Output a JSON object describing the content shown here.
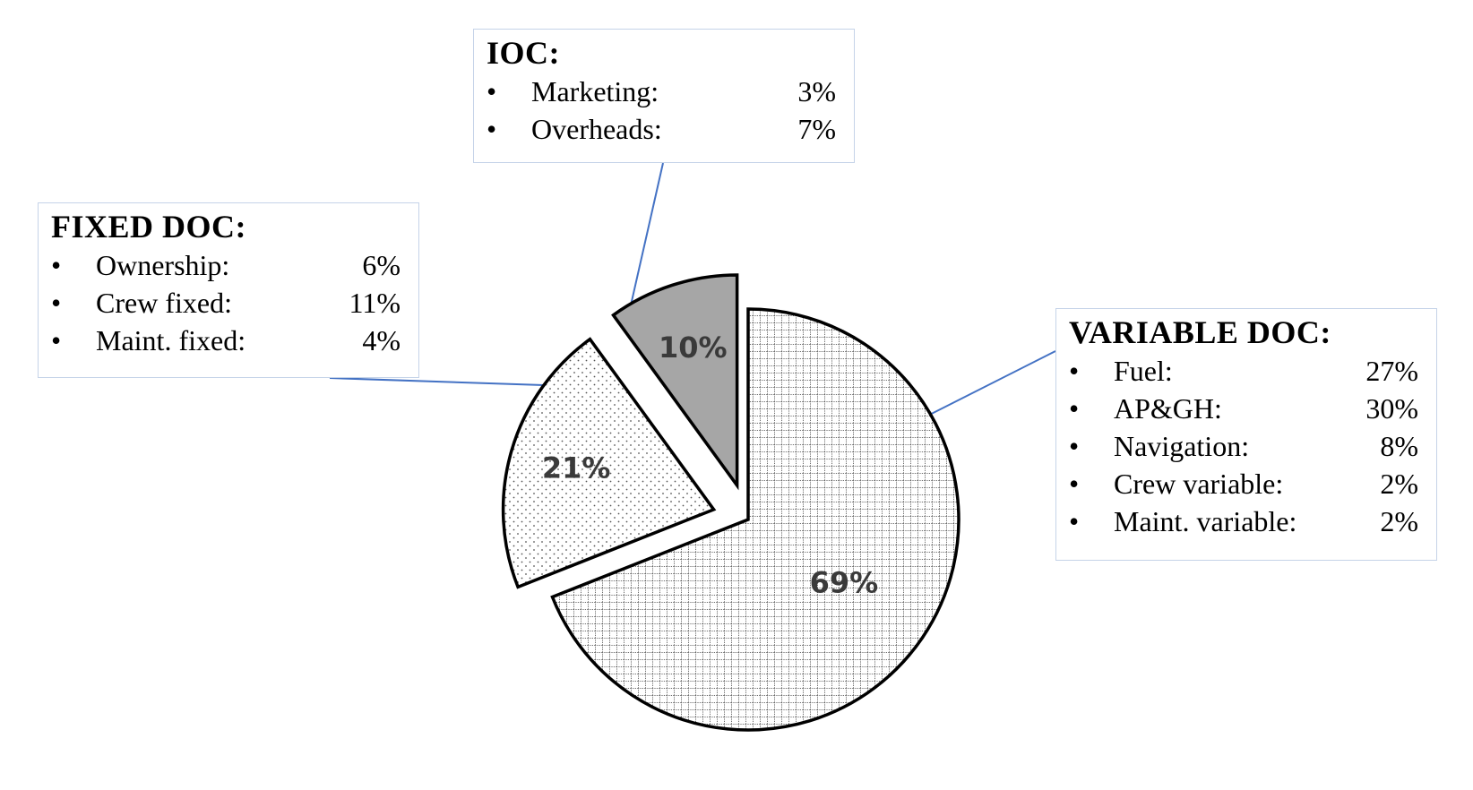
{
  "chart_data": {
    "type": "pie",
    "slices": [
      {
        "value": 10,
        "label": "10%",
        "fill": "#a6a6a6",
        "pattern": "solid"
      },
      {
        "value": 69,
        "label": "69%",
        "fill": "#ffffff",
        "pattern": "grid"
      },
      {
        "value": 21,
        "label": "21%",
        "fill": "#ffffff",
        "pattern": "dots"
      }
    ],
    "callouts": [
      {
        "title": "IOC:",
        "items": [
          {
            "label": "Marketing:",
            "value": "3%"
          },
          {
            "label": "Overheads:",
            "value": "7%"
          }
        ]
      },
      {
        "title": "FIXED DOC:",
        "items": [
          {
            "label": "Ownership:",
            "value": "6%"
          },
          {
            "label": "Crew fixed:",
            "value": "11%"
          },
          {
            "label": "Maint. fixed:",
            "value": "4%"
          }
        ]
      },
      {
        "title": "VARIABLE DOC:",
        "items": [
          {
            "label": "Fuel:",
            "value": "27%"
          },
          {
            "label": "AP&GH:",
            "value": "30%"
          },
          {
            "label": "Navigation:",
            "value": "8%"
          },
          {
            "label": "Crew variable:",
            "value": "2%"
          },
          {
            "label": "Maint. variable:",
            "value": "2%"
          }
        ]
      }
    ],
    "bullet": "•",
    "colors": {
      "outline": "#000000",
      "leader": "#4472c4",
      "callout_border": "#c5d3e8",
      "label_text": "#3a3a3a"
    }
  }
}
